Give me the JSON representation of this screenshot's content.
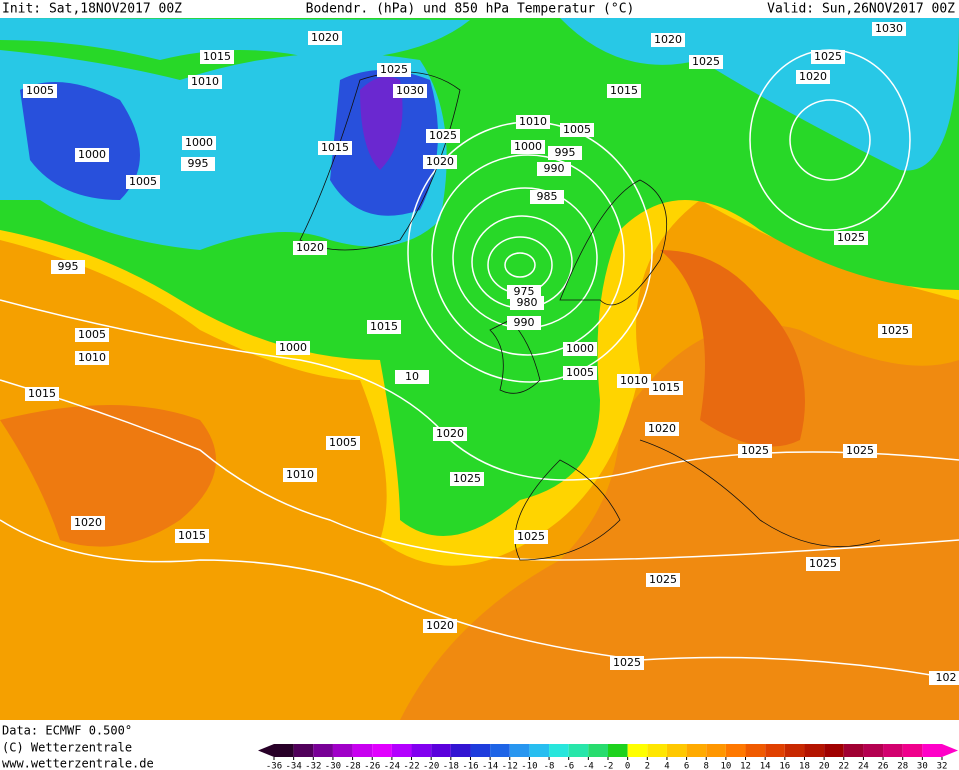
{
  "header": {
    "init": "Init: Sat,18NOV2017 00Z",
    "title": "Bodendr. (hPa) und 850 hPa Temperatur (°C)",
    "valid": "Valid: Sun,26NOV2017 00Z"
  },
  "isobar_labels": [
    "1020",
    "1015",
    "1010",
    "1005",
    "1025",
    "1030",
    "1000",
    "1005",
    "1000",
    "995",
    "1015",
    "1025",
    "1020",
    "1010",
    "1005",
    "1000",
    "995",
    "990",
    "985",
    "975",
    "980",
    "990",
    "1000",
    "1005",
    "1020",
    "995",
    "1015",
    "1000",
    "1005",
    "1010",
    "1015",
    "1020",
    "1025",
    "1005",
    "1010",
    "1020",
    "1015",
    "1025",
    "1020",
    "1025",
    "1025",
    "1025",
    "1020",
    "1015",
    "1010",
    "1025",
    "1025",
    "1025",
    "1025",
    "1020",
    "1025",
    "1030",
    "1020",
    "1025",
    "1015",
    "102",
    "10"
  ],
  "footer": {
    "data": "Data: ECMWF  0.500°",
    "copyright": "(C) Wetterzentrale",
    "url": "www.wetterzentrale.de"
  },
  "colorbar": {
    "ticks": [
      -36,
      -34,
      -32,
      -30,
      -28,
      -26,
      -24,
      -22,
      -20,
      -18,
      -16,
      -14,
      -12,
      -10,
      -8,
      -6,
      -4,
      -2,
      0,
      2,
      4,
      6,
      8,
      10,
      12,
      14,
      16,
      18,
      20,
      22,
      24,
      26,
      28,
      30,
      32
    ],
    "colors": [
      "#280028",
      "#50005a",
      "#780096",
      "#a000c8",
      "#c800f0",
      "#e100ff",
      "#b400ff",
      "#8200f0",
      "#5a00dc",
      "#3214d2",
      "#1e3cdc",
      "#1e64e6",
      "#2896f0",
      "#28bef0",
      "#28e6dc",
      "#28e6aa",
      "#28dc6e",
      "#1ed21e",
      "#ffff00",
      "#ffe600",
      "#ffc800",
      "#ffaa00",
      "#ff9600",
      "#ff7800",
      "#f05a00",
      "#e04000",
      "#c82800",
      "#b41400",
      "#a00000",
      "#a00032",
      "#b40050",
      "#d2006e",
      "#f0008c",
      "#ff00c8"
    ]
  }
}
